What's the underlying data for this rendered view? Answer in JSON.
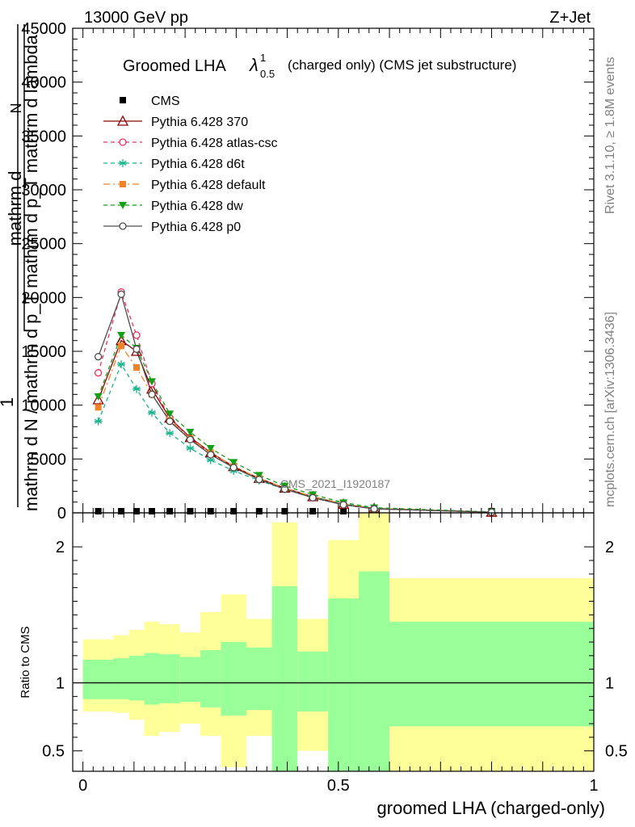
{
  "header": {
    "left": "13000 GeV pp",
    "right": "Z+Jet"
  },
  "title": {
    "main": "Groomed LHA",
    "lambda": "λ",
    "sup": "1",
    "sub": "0.5",
    "tail": "(charged only) (CMS jet substructure)"
  },
  "side_labels": {
    "rivet": "Rivet 3.1.10, ≥ 1.8M events",
    "mcplots": "mcplots.cern.ch [arXiv:1306.3436]"
  },
  "watermark": "CMS_2021_I1920187",
  "ylabel": {
    "one": "1",
    "numerator_line1": "mathrm d",
    "numerator_line2": "N",
    "denominator_line1": "mathrm d p_T mathrm d lambda",
    "denominator_line2": "mathrm d N / mathrm d p_T",
    "p_t_sub": "T"
  },
  "ratio_ylabel": "Ratio to CMS",
  "xlabel": "groomed LHA (charged-only)",
  "colors": {
    "cms": "#000000",
    "p370": "#8b0000",
    "atlas": "#e8315a",
    "d6t": "#19b48c",
    "default": "#f08228",
    "dw": "#14a014",
    "p0": "#4d4d4d",
    "band_outer": "#ffff99",
    "band_inner": "#99ff99"
  },
  "chart_data": [
    {
      "type": "line",
      "panel": "main",
      "x": [
        0.03,
        0.075,
        0.105,
        0.135,
        0.17,
        0.21,
        0.25,
        0.295,
        0.345,
        0.395,
        0.45,
        0.51,
        0.57,
        0.8
      ],
      "ylim": [
        0,
        45000
      ],
      "xlim": [
        -0.02,
        1.0
      ],
      "yticks": [
        0,
        5000,
        10000,
        15000,
        20000,
        25000,
        30000,
        35000,
        40000,
        45000
      ],
      "ytick_labels": [
        "0",
        "5000",
        "10000",
        "15000",
        "20000",
        "25000",
        "30000",
        "35000",
        "40000",
        "45000"
      ],
      "series": [
        {
          "name": "CMS",
          "key": "cms",
          "marker": "square",
          "values": [
            120,
            120,
            120,
            120,
            120,
            120,
            120,
            120,
            110,
            100,
            80,
            60,
            40,
            20
          ]
        },
        {
          "name": "Pythia 6.428 370",
          "key": "p370",
          "marker": "triangle-open",
          "values": [
            10500,
            16000,
            15000,
            11500,
            8800,
            7000,
            5600,
            4300,
            3200,
            2300,
            1500,
            800,
            400,
            60
          ]
        },
        {
          "name": "Pythia 6.428 atlas-csc",
          "key": "atlas",
          "marker": "circle-open",
          "values": [
            13000,
            20500,
            16500,
            12000,
            8800,
            6900,
            5500,
            4200,
            3100,
            2200,
            1400,
            750,
            370,
            55
          ]
        },
        {
          "name": "Pythia 6.428 d6t",
          "key": "d6t",
          "marker": "star",
          "values": [
            8500,
            13800,
            11500,
            9300,
            7400,
            6000,
            4900,
            3900,
            3000,
            2200,
            1500,
            850,
            420,
            70
          ]
        },
        {
          "name": "Pythia 6.428 default",
          "key": "default",
          "marker": "square-filled",
          "values": [
            9800,
            15500,
            13500,
            11000,
            8600,
            6900,
            5600,
            4300,
            3200,
            2300,
            1500,
            820,
            400,
            60
          ]
        },
        {
          "name": "Pythia 6.428 dw",
          "key": "dw",
          "marker": "triangle-down-filled",
          "values": [
            10800,
            16500,
            15300,
            12200,
            9200,
            7500,
            6000,
            4700,
            3500,
            2500,
            1700,
            950,
            480,
            80
          ]
        },
        {
          "name": "Pythia 6.428 p0",
          "key": "p0",
          "marker": "circle-open",
          "values": [
            14500,
            20300,
            15200,
            11000,
            8500,
            6800,
            5400,
            4200,
            3100,
            2200,
            1400,
            750,
            370,
            55
          ]
        }
      ]
    },
    {
      "type": "area",
      "panel": "ratio",
      "title": "",
      "ylabel": "Ratio to CMS",
      "xlabel": "groomed LHA (charged-only)",
      "ylim": [
        0.35,
        2.25
      ],
      "xlim": [
        -0.02,
        1.0
      ],
      "yticks": [
        0.5,
        1,
        2
      ],
      "ytick_labels": [
        "0.5",
        "1",
        "2"
      ],
      "xticks": [
        0,
        0.5,
        1
      ],
      "xtick_labels": [
        "0",
        "0.5",
        "1"
      ],
      "bins": [
        {
          "x0": 0.0,
          "x1": 0.06,
          "outer": [
            0.79,
            1.32
          ],
          "inner": [
            0.88,
            1.17
          ]
        },
        {
          "x0": 0.06,
          "x1": 0.09,
          "outer": [
            0.78,
            1.35
          ],
          "inner": [
            0.88,
            1.18
          ]
        },
        {
          "x0": 0.09,
          "x1": 0.12,
          "outer": [
            0.73,
            1.39
          ],
          "inner": [
            0.87,
            1.2
          ]
        },
        {
          "x0": 0.12,
          "x1": 0.15,
          "outer": [
            0.61,
            1.45
          ],
          "inner": [
            0.84,
            1.22
          ]
        },
        {
          "x0": 0.15,
          "x1": 0.19,
          "outer": [
            0.64,
            1.43
          ],
          "inner": [
            0.85,
            1.21
          ]
        },
        {
          "x0": 0.19,
          "x1": 0.23,
          "outer": [
            0.7,
            1.37
          ],
          "inner": [
            0.86,
            1.19
          ]
        },
        {
          "x0": 0.23,
          "x1": 0.27,
          "outer": [
            0.61,
            1.52
          ],
          "inner": [
            0.82,
            1.24
          ]
        },
        {
          "x0": 0.27,
          "x1": 0.32,
          "outer": [
            0.38,
            1.65
          ],
          "inner": [
            0.76,
            1.3
          ]
        },
        {
          "x0": 0.32,
          "x1": 0.37,
          "outer": [
            0.61,
            1.47
          ],
          "inner": [
            0.8,
            1.26
          ]
        },
        {
          "x0": 0.37,
          "x1": 0.42,
          "outer": [
            0.3,
            2.18
          ],
          "inner": [
            0.3,
            1.71
          ]
        },
        {
          "x0": 0.42,
          "x1": 0.48,
          "outer": [
            0.5,
            1.47
          ],
          "inner": [
            0.79,
            1.23
          ]
        },
        {
          "x0": 0.48,
          "x1": 0.54,
          "outer": [
            0.3,
            2.05
          ],
          "inner": [
            0.3,
            1.62
          ]
        },
        {
          "x0": 0.54,
          "x1": 0.6,
          "outer": [
            0.3,
            2.3
          ],
          "inner": [
            0.3,
            1.82
          ]
        },
        {
          "x0": 0.6,
          "x1": 1.0,
          "outer": [
            0.25,
            1.77
          ],
          "inner": [
            0.68,
            1.45
          ]
        }
      ]
    }
  ]
}
